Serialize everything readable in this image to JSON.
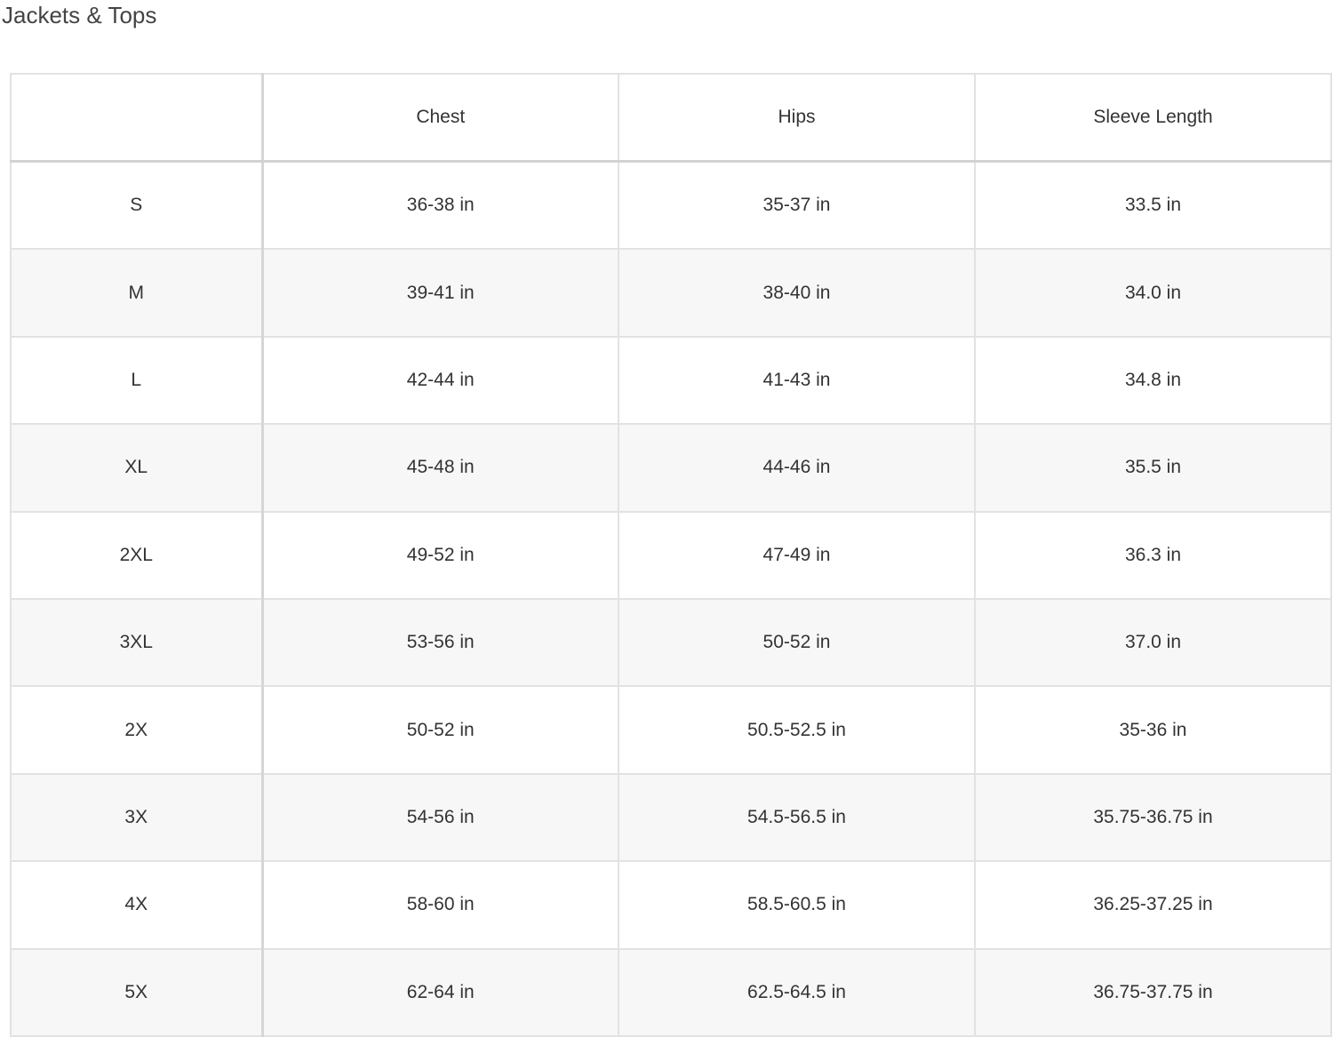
{
  "title": "Jackets & Tops",
  "table": {
    "headers": [
      "",
      "Chest",
      "Hips",
      "Sleeve Length"
    ],
    "rows": [
      [
        "S",
        "36-38 in",
        "35-37 in",
        "33.5 in"
      ],
      [
        "M",
        "39-41 in",
        "38-40 in",
        "34.0 in"
      ],
      [
        "L",
        "42-44 in",
        "41-43 in",
        "34.8 in"
      ],
      [
        "XL",
        "45-48 in",
        "44-46 in",
        "35.5 in"
      ],
      [
        "2XL",
        "49-52 in",
        "47-49 in",
        "36.3 in"
      ],
      [
        "3XL",
        "53-56 in",
        "50-52 in",
        "37.0 in"
      ],
      [
        "2X",
        "50-52 in",
        "50.5-52.5 in",
        "35-36 in"
      ],
      [
        "3X",
        "54-56 in",
        "54.5-56.5 in",
        "35.75-36.75 in"
      ],
      [
        "4X",
        "58-60 in",
        "58.5-60.5 in",
        "36.25-37.25 in"
      ],
      [
        "5X",
        "62-64 in",
        "62.5-64.5 in",
        "36.75-37.75 in"
      ]
    ]
  }
}
